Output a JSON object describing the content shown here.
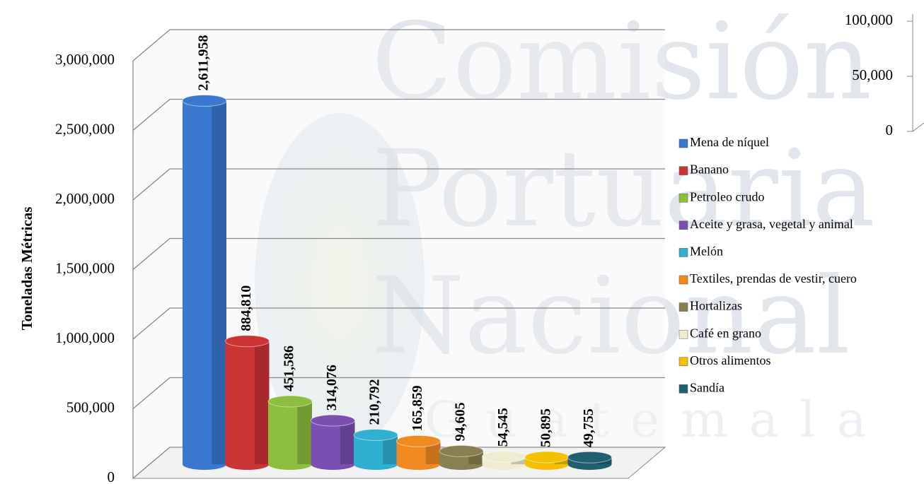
{
  "chart_data": [
    {
      "type": "bar",
      "y_label": "Toneladas Métricas",
      "watermark": [
        "Comisión",
        "Portuaria",
        "Nacional",
        "Guatemala"
      ],
      "categories": [
        "Mena de níquel",
        "Banano",
        "Petroleo crudo",
        "Aceite y grasa, vegetal y animal",
        "Melón",
        "Textiles, prendas de vestir, cuero",
        "Hortalizas",
        "Café en grano",
        "Otros alimentos",
        "Sandía"
      ],
      "values": [
        2611958,
        884810,
        451586,
        314076,
        210792,
        165859,
        94605,
        54545,
        50895,
        49755
      ],
      "value_labels": [
        "2,611,958",
        "884,810",
        "451,586",
        "314,076",
        "210,792",
        "165,859",
        "94,605",
        "54,545",
        "50,895",
        "49,755"
      ],
      "colors": [
        "#3a78d0",
        "#cc3333",
        "#8cbf3f",
        "#7a4fb0",
        "#2fb0d0",
        "#f08a20",
        "#8a7f50",
        "#f0ecd0",
        "#f5c000",
        "#1f6070"
      ],
      "ylim": [
        0,
        3000000
      ],
      "yticks": [
        {
          "value": 0,
          "label": "0"
        },
        {
          "value": 500000,
          "label": "500,000"
        },
        {
          "value": 1000000,
          "label": "1,000,000"
        },
        {
          "value": 1500000,
          "label": "1,500,000"
        },
        {
          "value": 2000000,
          "label": "2,000,000"
        },
        {
          "value": 2500000,
          "label": "2,500,000"
        },
        {
          "value": 3000000,
          "label": "3,000,000"
        }
      ],
      "grid": true,
      "legend": "right"
    },
    {
      "type": "bar",
      "ylim": [
        0,
        100000
      ],
      "yticks": [
        {
          "value": 0,
          "label": "0"
        },
        {
          "value": 50000,
          "label": "50,000"
        },
        {
          "value": 100000,
          "label": "100,000"
        }
      ]
    }
  ]
}
